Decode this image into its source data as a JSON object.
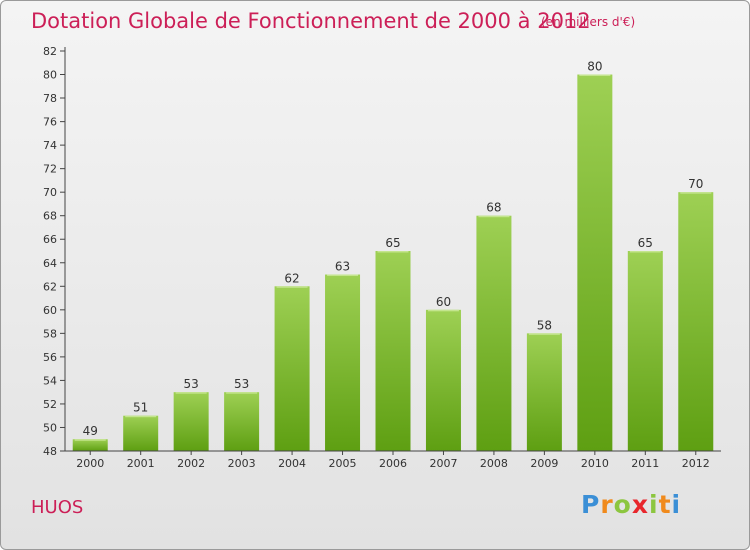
{
  "title": "Dotation Globale de Fonctionnement de 2000 à 2012",
  "subtitle": "(en milliers d'€)",
  "commune": "HUOS",
  "logo": {
    "text": "Proxiti",
    "letter_colors": [
      "#3b8fd6",
      "#f08a1c",
      "#8cc63f",
      "#e8262c",
      "#8cc63f",
      "#f08a1c",
      "#3b8fd6"
    ]
  },
  "chart_data": {
    "type": "bar",
    "categories": [
      "2000",
      "2001",
      "2002",
      "2003",
      "2004",
      "2005",
      "2006",
      "2007",
      "2008",
      "2009",
      "2010",
      "2011",
      "2012"
    ],
    "values": [
      49,
      51,
      53,
      53,
      62,
      63,
      65,
      60,
      68,
      58,
      80,
      65,
      70
    ],
    "title": "Dotation Globale de Fonctionnement de 2000 à 2012",
    "subtitle": "(en milliers d'€)",
    "xlabel": "",
    "ylabel": "",
    "ylim": [
      48,
      82
    ],
    "yticks": [
      48,
      50,
      52,
      54,
      56,
      58,
      60,
      62,
      64,
      66,
      68,
      70,
      72,
      74,
      76,
      78,
      80,
      82
    ],
    "grid": false,
    "bar_color": "#7cbd2e"
  }
}
